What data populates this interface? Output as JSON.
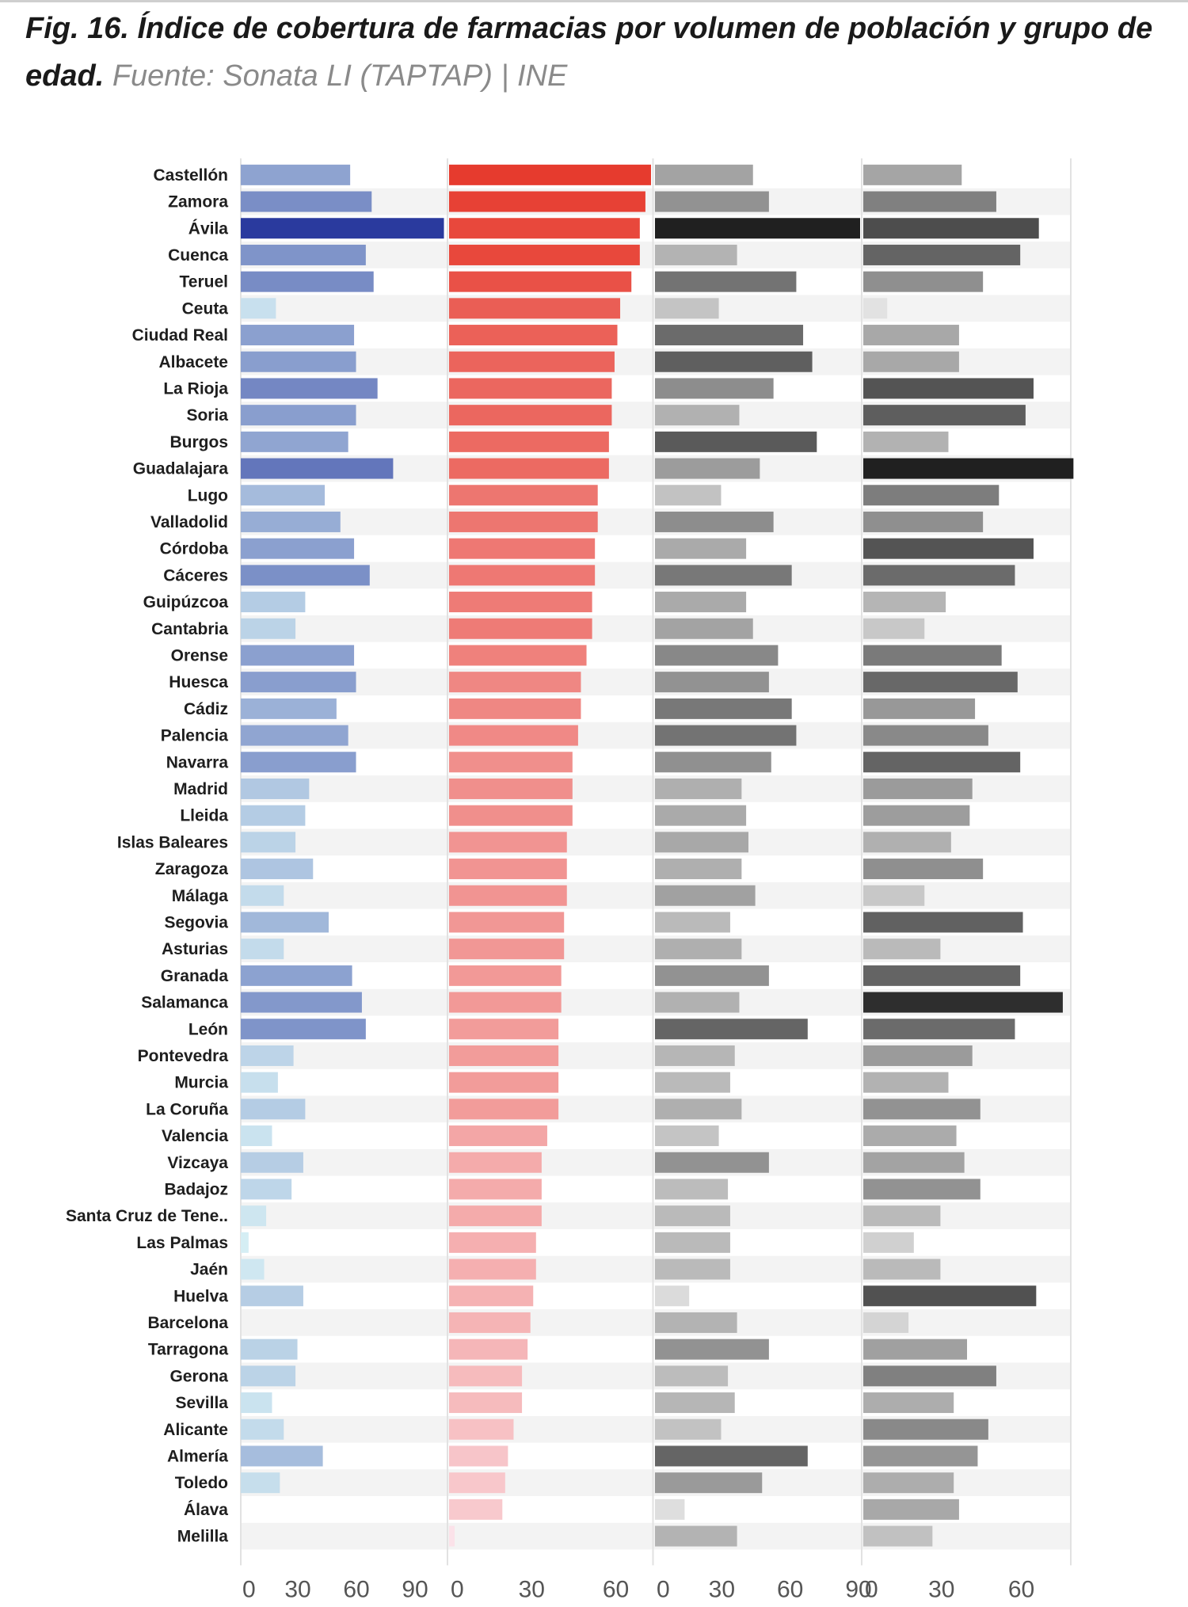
{
  "caption": {
    "title": "Fig. 16. Índice de cobertura de farmacias por volumen de población y grupo de edad.",
    "source": "Fuente: Sonata LI (TAPTAP) | INE"
  },
  "chart_data": {
    "type": "bar",
    "orientation": "horizontal",
    "grid": false,
    "categories": [
      "Castellón",
      "Zamora",
      "Ávila",
      "Cuenca",
      "Teruel",
      "Ceuta",
      "Ciudad Real",
      "Albacete",
      "La Rioja",
      "Soria",
      "Burgos",
      "Guadalajara",
      "Lugo",
      "Valladolid",
      "Córdoba",
      "Cáceres",
      "Guipúzcoa",
      "Cantabria",
      "Orense",
      "Huesca",
      "Cádiz",
      "Palencia",
      "Navarra",
      "Madrid",
      "Lleida",
      "Islas Baleares",
      "Zaragoza",
      "Málaga",
      "Segovia",
      "Asturias",
      "Granada",
      "Salamanca",
      "León",
      "Pontevedra",
      "Murcia",
      "La Coruña",
      "Valencia",
      "Vizcaya",
      "Badajoz",
      "Santa Cruz de Tene..",
      "Las Palmas",
      "Jaén",
      "Huelva",
      "Barcelona",
      "Tarragona",
      "Gerona",
      "Sevilla",
      "Alicante",
      "Almería",
      "Toledo",
      "Álava",
      "Melilla"
    ],
    "panels": [
      {
        "xlim": [
          0,
          105
        ],
        "ticks": [
          "0",
          "30",
          "60",
          "90"
        ],
        "tick_values": [
          0,
          30,
          60,
          90
        ],
        "color_scale": [
          "#d7f0f5",
          "#2a3a9e"
        ],
        "values": [
          56,
          67,
          104,
          64,
          68,
          18,
          58,
          59,
          70,
          59,
          55,
          78,
          43,
          51,
          58,
          66,
          33,
          28,
          58,
          59,
          49,
          55,
          59,
          35,
          33,
          28,
          37,
          22,
          45,
          22,
          57,
          62,
          64,
          27,
          19,
          33,
          16,
          32,
          26,
          13,
          4,
          12,
          32,
          0,
          29,
          28,
          16,
          22,
          42,
          20,
          0,
          0
        ]
      },
      {
        "xlim": [
          0,
          72
        ],
        "ticks": [
          "0",
          "30",
          "60"
        ],
        "tick_values": [
          0,
          30,
          60
        ],
        "color_scale": [
          "#fbe3ea",
          "#e63b2e"
        ],
        "values": [
          72,
          70,
          68,
          68,
          65,
          61,
          60,
          59,
          58,
          58,
          57,
          57,
          53,
          53,
          52,
          52,
          51,
          51,
          49,
          47,
          47,
          46,
          44,
          44,
          44,
          42,
          42,
          42,
          41,
          41,
          40,
          40,
          39,
          39,
          39,
          39,
          35,
          33,
          33,
          33,
          31,
          31,
          30,
          29,
          28,
          26,
          26,
          23,
          21,
          20,
          19,
          2
        ]
      },
      {
        "xlim": [
          0,
          90
        ],
        "ticks": [
          "0",
          "30",
          "60",
          "90"
        ],
        "tick_values": [
          0,
          30,
          60,
          90
        ],
        "color_scale": [
          "#ececec",
          "#202020"
        ],
        "values": [
          43,
          50,
          90,
          36,
          62,
          28,
          65,
          69,
          52,
          37,
          71,
          46,
          29,
          52,
          40,
          60,
          40,
          43,
          54,
          50,
          60,
          62,
          51,
          38,
          40,
          41,
          38,
          44,
          33,
          38,
          50,
          37,
          67,
          35,
          33,
          38,
          28,
          50,
          32,
          33,
          33,
          33,
          15,
          36,
          50,
          32,
          35,
          29,
          67,
          47,
          13,
          36
        ]
      },
      {
        "xlim": [
          0,
          78
        ],
        "ticks": [
          "0",
          "30",
          "60"
        ],
        "tick_values": [
          0,
          30,
          60
        ],
        "color_scale": [
          "#ececec",
          "#202020"
        ],
        "values": [
          37,
          50,
          66,
          59,
          45,
          9,
          36,
          36,
          64,
          61,
          32,
          79,
          51,
          45,
          64,
          57,
          31,
          23,
          52,
          58,
          42,
          47,
          59,
          41,
          40,
          33,
          45,
          23,
          60,
          29,
          59,
          75,
          57,
          41,
          32,
          44,
          35,
          38,
          44,
          29,
          19,
          29,
          65,
          17,
          39,
          50,
          34,
          47,
          43,
          34,
          36,
          26
        ]
      }
    ]
  }
}
